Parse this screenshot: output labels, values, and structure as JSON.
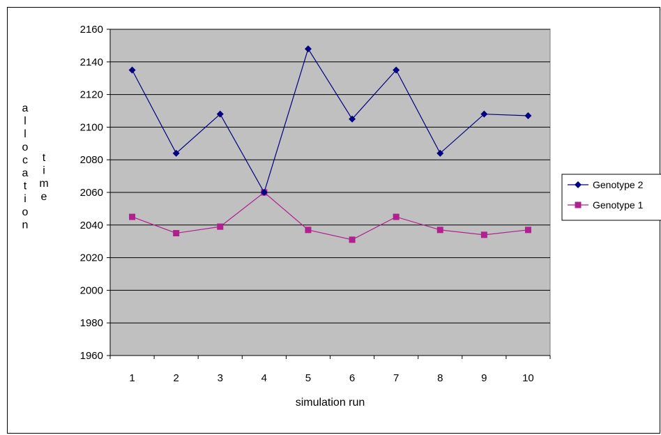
{
  "chart_data": {
    "type": "line",
    "title": "",
    "xlabel": "simulation run",
    "ylabel_parts": [
      "allocation",
      "time"
    ],
    "categories": [
      "1",
      "2",
      "3",
      "4",
      "5",
      "6",
      "7",
      "8",
      "9",
      "10"
    ],
    "ylim": [
      1960,
      2160
    ],
    "ytick_step": 20,
    "grid": true,
    "plot_background": "#c0c0c0",
    "legend_position": "right",
    "series": [
      {
        "name": "Genotype 2",
        "marker": "diamond",
        "color": "#000080",
        "values": [
          2135,
          2084,
          2108,
          2060,
          2148,
          2105,
          2135,
          2084,
          2108,
          2107
        ]
      },
      {
        "name": "Genotype 1",
        "marker": "square",
        "color": "#b0208f",
        "values": [
          2045,
          2035,
          2039,
          2060,
          2037,
          2031,
          2045,
          2037,
          2034,
          2037
        ]
      }
    ]
  }
}
